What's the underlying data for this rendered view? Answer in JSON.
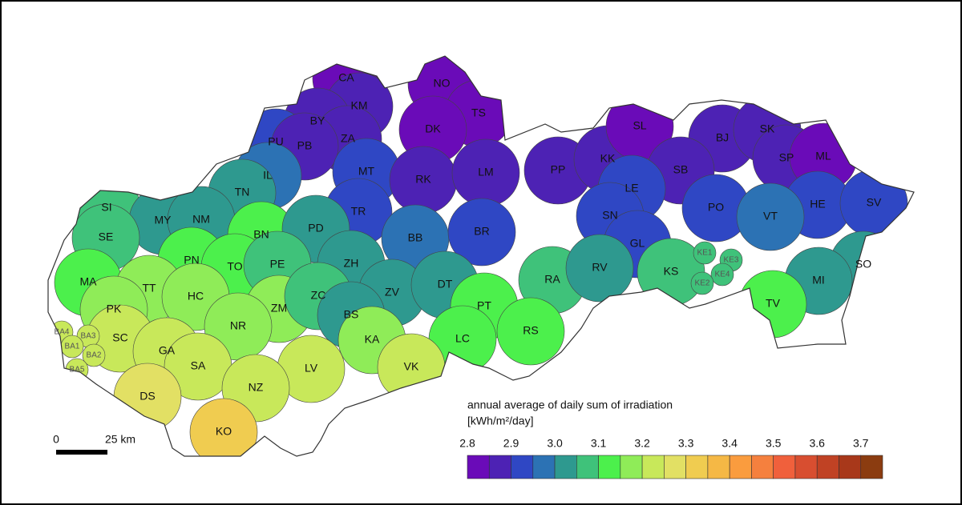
{
  "legend": {
    "title": "annual average of daily sum of irradiation",
    "unit": "[kWh/m²/day]",
    "range": [
      2.8,
      3.75
    ],
    "ticks": [
      2.8,
      2.9,
      {
        "value": 3,
        "label": "3.0"
      },
      3.1,
      3.2,
      3.3,
      3.4,
      3.5,
      3.6,
      3.7
    ],
    "colors": [
      "#6a0bb8",
      "#4d22b4",
      "#2f47c4",
      "#2c72b4",
      "#2e998f",
      "#3fc27a",
      "#4cf04c",
      "#8fec58",
      "#c8e85a",
      "#e2e064",
      "#f0cc50",
      "#f5b845",
      "#fa9c3e",
      "#f5803e",
      "#f0603c",
      "#d84e30",
      "#c04224",
      "#a8381a",
      "#8b3c10"
    ]
  },
  "scale_bar": {
    "start": "0",
    "end": "25 km"
  },
  "districts": [
    {
      "label": "CA",
      "value": 2.825
    },
    {
      "label": "NO",
      "value": 2.825
    },
    {
      "label": "KM",
      "value": 2.875
    },
    {
      "label": "TS",
      "value": 2.825
    },
    {
      "label": "BY",
      "value": 2.875
    },
    {
      "label": "DK",
      "value": 2.825
    },
    {
      "label": "ZA",
      "value": 2.875
    },
    {
      "label": "PU",
      "value": 2.925
    },
    {
      "label": "PB",
      "value": 2.875
    },
    {
      "label": "MT",
      "value": 2.925
    },
    {
      "label": "RK",
      "value": 2.875
    },
    {
      "label": "LM",
      "value": 2.875
    },
    {
      "label": "PP",
      "value": 2.875
    },
    {
      "label": "KK",
      "value": 2.875
    },
    {
      "label": "SL",
      "value": 2.825
    },
    {
      "label": "BJ",
      "value": 2.875
    },
    {
      "label": "SK",
      "value": 2.875
    },
    {
      "label": "SP",
      "value": 2.875
    },
    {
      "label": "ML",
      "value": 2.825
    },
    {
      "label": "IL",
      "value": 2.975
    },
    {
      "label": "SB",
      "value": 2.875
    },
    {
      "label": "LE",
      "value": 2.925
    },
    {
      "label": "PO",
      "value": 2.925
    },
    {
      "label": "HE",
      "value": 2.925
    },
    {
      "label": "SV",
      "value": 2.925
    },
    {
      "label": "VT",
      "value": 2.975
    },
    {
      "label": "TN",
      "value": 3.025
    },
    {
      "label": "SI",
      "value": 3.075
    },
    {
      "label": "MY",
      "value": 3.025
    },
    {
      "label": "NM",
      "value": 3.025
    },
    {
      "label": "TR",
      "value": 2.925
    },
    {
      "label": "SN",
      "value": 2.925
    },
    {
      "label": "BN",
      "value": 3.125
    },
    {
      "label": "PD",
      "value": 3.025
    },
    {
      "label": "BB",
      "value": 2.975
    },
    {
      "label": "BR",
      "value": 2.925
    },
    {
      "label": "GL",
      "value": 2.925
    },
    {
      "label": "SE",
      "value": 3.075
    },
    {
      "label": "PN",
      "value": 3.125
    },
    {
      "label": "TO",
      "value": 3.125
    },
    {
      "label": "PE",
      "value": 3.075
    },
    {
      "label": "ZH",
      "value": 3.025
    },
    {
      "label": "RA",
      "value": 3.075
    },
    {
      "label": "RV",
      "value": 3.025
    },
    {
      "label": "KS",
      "value": 3.075
    },
    {
      "label": "SO",
      "value": 3.025
    },
    {
      "label": "MA",
      "value": 3.125
    },
    {
      "label": "TT",
      "value": 3.175
    },
    {
      "label": "HC",
      "value": 3.175
    },
    {
      "label": "ZM",
      "value": 3.175
    },
    {
      "label": "ZC",
      "value": 3.075
    },
    {
      "label": "ZV",
      "value": 3.025
    },
    {
      "label": "DT",
      "value": 3.025
    },
    {
      "label": "MI",
      "value": 3.025
    },
    {
      "label": "TV",
      "value": 3.125
    },
    {
      "label": "PK",
      "value": 3.175
    },
    {
      "label": "NR",
      "value": 3.175
    },
    {
      "label": "BS",
      "value": 3.025
    },
    {
      "label": "PT",
      "value": 3.125
    },
    {
      "label": "RS",
      "value": 3.125
    },
    {
      "label": "SC",
      "value": 3.225
    },
    {
      "label": "KA",
      "value": 3.175
    },
    {
      "label": "LC",
      "value": 3.125
    },
    {
      "label": "GA",
      "value": 3.225
    },
    {
      "label": "SA",
      "value": 3.225
    },
    {
      "label": "VK",
      "value": 3.225
    },
    {
      "label": "LV",
      "value": 3.225
    },
    {
      "label": "DS",
      "value": 3.275
    },
    {
      "label": "NZ",
      "value": 3.225
    },
    {
      "label": "KO",
      "value": 3.325
    },
    {
      "label": "BA4",
      "value": 3.225
    },
    {
      "label": "BA3",
      "value": 3.225
    },
    {
      "label": "BA1",
      "value": 3.225
    },
    {
      "label": "BA2",
      "value": 3.225
    },
    {
      "label": "BA5",
      "value": 3.225
    },
    {
      "label": "KE1",
      "value": 3.075
    },
    {
      "label": "KE3",
      "value": 3.075
    },
    {
      "label": "KE4",
      "value": 3.075
    },
    {
      "label": "KE2",
      "value": 3.075
    }
  ]
}
